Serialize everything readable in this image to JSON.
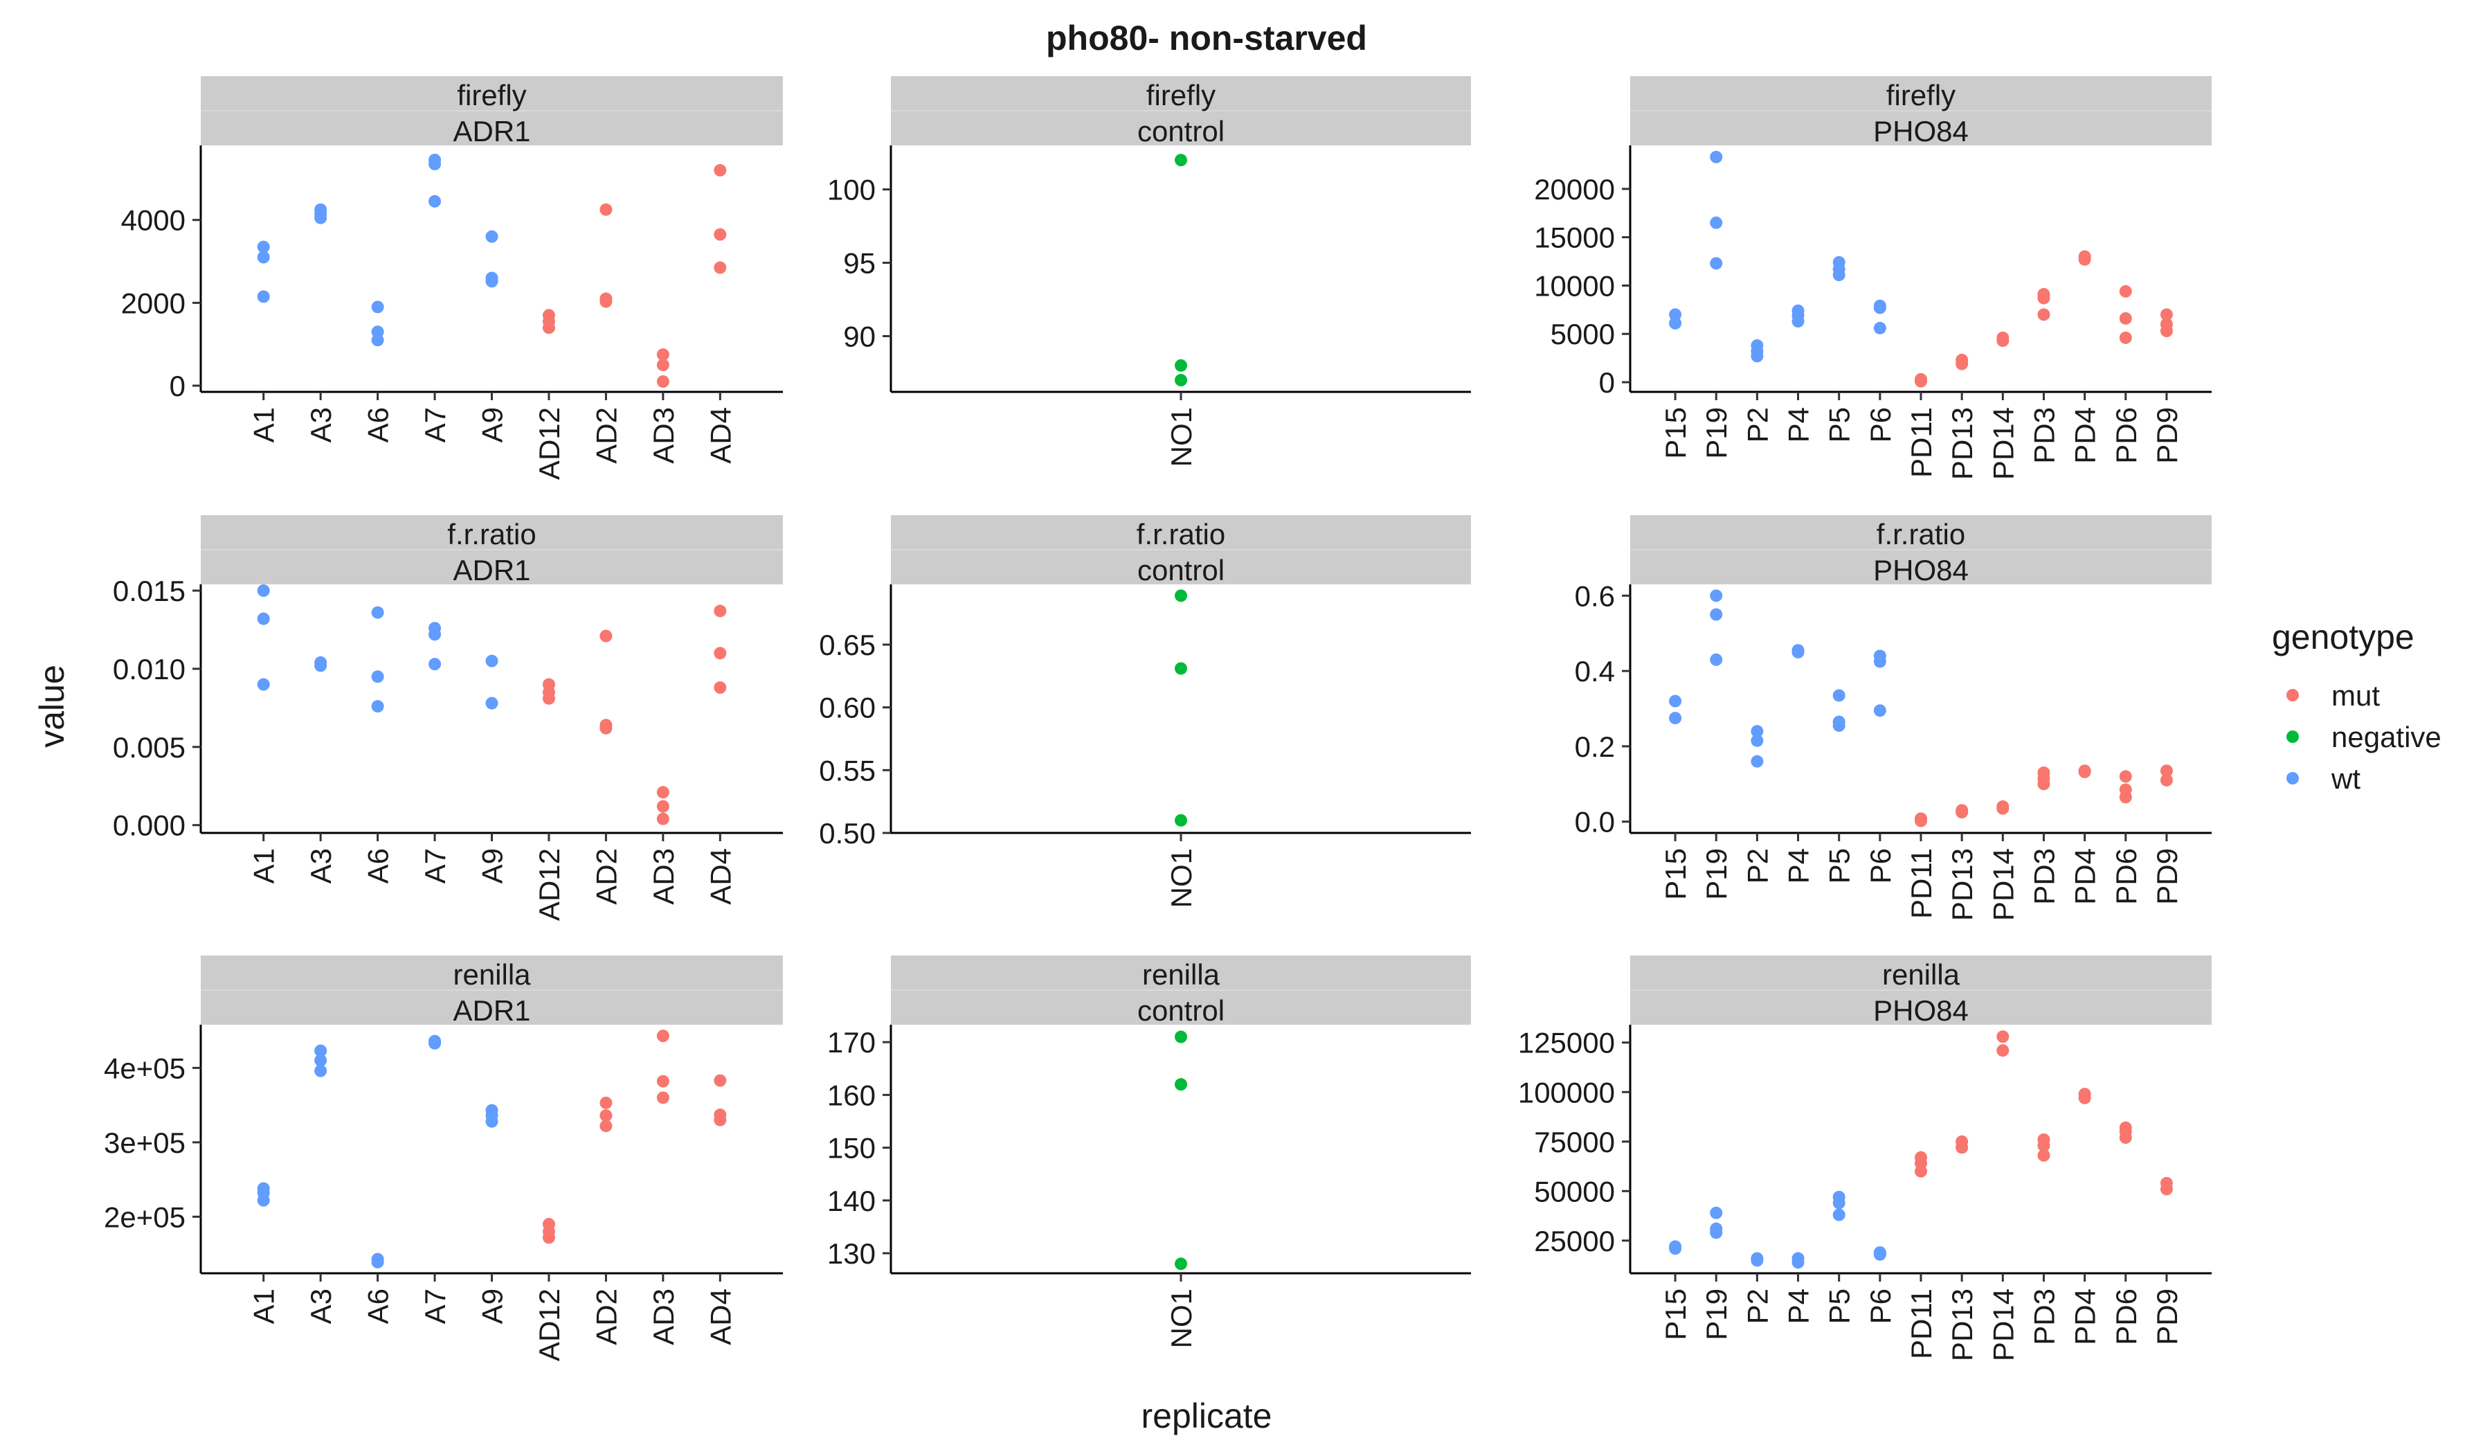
{
  "title": "pho80- non-starved",
  "xlabel": "replicate",
  "ylabel": "value",
  "legend": {
    "title": "genotype",
    "items": [
      {
        "label": "mut",
        "color": "#F8766D"
      },
      {
        "label": "negative",
        "color": "#00BA38"
      },
      {
        "label": "wt",
        "color": "#619CFF"
      }
    ]
  },
  "chart_data": [
    {
      "type": "scatter",
      "strip_top": "firefly",
      "strip_bottom": "ADR1",
      "categories": [
        "A1",
        "A3",
        "A6",
        "A7",
        "A9",
        "AD12",
        "AD2",
        "AD3",
        "AD4"
      ],
      "ylim": [
        -150,
        5800
      ],
      "yticks": [
        0,
        2000,
        4000
      ],
      "yticklabels": [
        "0",
        "2000",
        "4000"
      ],
      "series": [
        {
          "name": "wt",
          "points": [
            [
              "A1",
              3350
            ],
            [
              "A1",
              3100
            ],
            [
              "A1",
              2150
            ],
            [
              "A3",
              4250
            ],
            [
              "A3",
              4150
            ],
            [
              "A3",
              4050
            ],
            [
              "A6",
              1900
            ],
            [
              "A6",
              1300
            ],
            [
              "A6",
              1100
            ],
            [
              "A7",
              5450
            ],
            [
              "A7",
              5350
            ],
            [
              "A7",
              4450
            ],
            [
              "A9",
              3600
            ],
            [
              "A9",
              2600
            ],
            [
              "A9",
              2520
            ]
          ]
        },
        {
          "name": "mut",
          "points": [
            [
              "AD12",
              1700
            ],
            [
              "AD12",
              1550
            ],
            [
              "AD12",
              1400
            ],
            [
              "AD2",
              4250
            ],
            [
              "AD2",
              2100
            ],
            [
              "AD2",
              2030
            ],
            [
              "AD3",
              750
            ],
            [
              "AD3",
              500
            ],
            [
              "AD3",
              100
            ],
            [
              "AD4",
              5200
            ],
            [
              "AD4",
              3650
            ],
            [
              "AD4",
              2850
            ]
          ]
        }
      ]
    },
    {
      "type": "scatter",
      "strip_top": "firefly",
      "strip_bottom": "control",
      "categories": [
        "NO1"
      ],
      "ylim": [
        86.2,
        103
      ],
      "yticks": [
        90,
        95,
        100
      ],
      "yticklabels": [
        "90",
        "95",
        "100"
      ],
      "series": [
        {
          "name": "negative",
          "points": [
            [
              "NO1",
              102
            ],
            [
              "NO1",
              88
            ],
            [
              "NO1",
              87
            ]
          ]
        }
      ]
    },
    {
      "type": "scatter",
      "strip_top": "firefly",
      "strip_bottom": "PHO84",
      "categories": [
        "P15",
        "P19",
        "P2",
        "P4",
        "P5",
        "P6",
        "PD11",
        "PD13",
        "PD14",
        "PD3",
        "PD4",
        "PD6",
        "PD9"
      ],
      "ylim": [
        -1000,
        24500
      ],
      "yticks": [
        0,
        5000,
        10000,
        15000,
        20000
      ],
      "yticklabels": [
        "0",
        "5000",
        "10000",
        "15000",
        "20000"
      ],
      "series": [
        {
          "name": "wt",
          "points": [
            [
              "P15",
              7000
            ],
            [
              "P15",
              6100
            ],
            [
              "P19",
              23300
            ],
            [
              "P19",
              16500
            ],
            [
              "P19",
              12300
            ],
            [
              "P2",
              3800
            ],
            [
              "P2",
              3200
            ],
            [
              "P2",
              2700
            ],
            [
              "P4",
              7400
            ],
            [
              "P4",
              6900
            ],
            [
              "P4",
              6300
            ],
            [
              "P5",
              12400
            ],
            [
              "P5",
              11700
            ],
            [
              "P5",
              11100
            ],
            [
              "P6",
              7900
            ],
            [
              "P6",
              7700
            ],
            [
              "P6",
              5600
            ]
          ]
        },
        {
          "name": "mut",
          "points": [
            [
              "PD11",
              300
            ],
            [
              "PD11",
              100
            ],
            [
              "PD13",
              2300
            ],
            [
              "PD13",
              1900
            ],
            [
              "PD14",
              4600
            ],
            [
              "PD14",
              4300
            ],
            [
              "PD3",
              9100
            ],
            [
              "PD3",
              8700
            ],
            [
              "PD3",
              7000
            ],
            [
              "PD4",
              13000
            ],
            [
              "PD4",
              12700
            ],
            [
              "PD6",
              9400
            ],
            [
              "PD6",
              6600
            ],
            [
              "PD6",
              4600
            ],
            [
              "PD9",
              7000
            ],
            [
              "PD9",
              6000
            ],
            [
              "PD9",
              5300
            ]
          ]
        }
      ]
    },
    {
      "type": "scatter",
      "strip_top": "f.r.ratio",
      "strip_bottom": "ADR1",
      "categories": [
        "A1",
        "A3",
        "A6",
        "A7",
        "A9",
        "AD12",
        "AD2",
        "AD3",
        "AD4"
      ],
      "ylim": [
        -0.0005,
        0.0154
      ],
      "yticks": [
        0,
        0.005,
        0.01,
        0.015
      ],
      "yticklabels": [
        "0.000",
        "0.005",
        "0.010",
        "0.015"
      ],
      "series": [
        {
          "name": "wt",
          "points": [
            [
              "A1",
              0.015
            ],
            [
              "A1",
              0.0132
            ],
            [
              "A1",
              0.009
            ],
            [
              "A3",
              0.0104
            ],
            [
              "A3",
              0.0102
            ],
            [
              "A6",
              0.0136
            ],
            [
              "A6",
              0.0095
            ],
            [
              "A6",
              0.0076
            ],
            [
              "A7",
              0.0126
            ],
            [
              "A7",
              0.0122
            ],
            [
              "A7",
              0.0103
            ],
            [
              "A9",
              0.0105
            ],
            [
              "A9",
              0.0078
            ]
          ]
        },
        {
          "name": "mut",
          "points": [
            [
              "AD12",
              0.009
            ],
            [
              "AD12",
              0.0085
            ],
            [
              "AD12",
              0.0081
            ],
            [
              "AD2",
              0.0121
            ],
            [
              "AD2",
              0.0064
            ],
            [
              "AD2",
              0.0062
            ],
            [
              "AD3",
              0.0021
            ],
            [
              "AD3",
              0.0012
            ],
            [
              "AD3",
              0.0004
            ],
            [
              "AD4",
              0.0137
            ],
            [
              "AD4",
              0.011
            ],
            [
              "AD4",
              0.0088
            ]
          ]
        }
      ]
    },
    {
      "type": "scatter",
      "strip_top": "f.r.ratio",
      "strip_bottom": "control",
      "categories": [
        "NO1"
      ],
      "ylim": [
        0.5,
        0.698
      ],
      "yticks": [
        0.5,
        0.55,
        0.6,
        0.65
      ],
      "yticklabels": [
        "0.50",
        "0.55",
        "0.60",
        "0.65"
      ],
      "series": [
        {
          "name": "negative",
          "points": [
            [
              "NO1",
              0.689
            ],
            [
              "NO1",
              0.631
            ],
            [
              "NO1",
              0.51
            ]
          ]
        }
      ]
    },
    {
      "type": "scatter",
      "strip_top": "f.r.ratio",
      "strip_bottom": "PHO84",
      "categories": [
        "P15",
        "P19",
        "P2",
        "P4",
        "P5",
        "P6",
        "PD11",
        "PD13",
        "PD14",
        "PD3",
        "PD4",
        "PD6",
        "PD9"
      ],
      "ylim": [
        -0.03,
        0.63
      ],
      "yticks": [
        0,
        0.2,
        0.4,
        0.6
      ],
      "yticklabels": [
        "0.0",
        "0.2",
        "0.4",
        "0.6"
      ],
      "series": [
        {
          "name": "wt",
          "points": [
            [
              "P15",
              0.32
            ],
            [
              "P15",
              0.275
            ],
            [
              "P19",
              0.6
            ],
            [
              "P19",
              0.55
            ],
            [
              "P19",
              0.43
            ],
            [
              "P2",
              0.24
            ],
            [
              "P2",
              0.215
            ],
            [
              "P2",
              0.16
            ],
            [
              "P4",
              0.455
            ],
            [
              "P4",
              0.45
            ],
            [
              "P5",
              0.335
            ],
            [
              "P5",
              0.265
            ],
            [
              "P5",
              0.255
            ],
            [
              "P6",
              0.44
            ],
            [
              "P6",
              0.425
            ],
            [
              "P6",
              0.295
            ]
          ]
        },
        {
          "name": "mut",
          "points": [
            [
              "PD11",
              0.008
            ],
            [
              "PD11",
              0.002
            ],
            [
              "PD13",
              0.03
            ],
            [
              "PD13",
              0.025
            ],
            [
              "PD14",
              0.04
            ],
            [
              "PD14",
              0.035
            ],
            [
              "PD3",
              0.13
            ],
            [
              "PD3",
              0.115
            ],
            [
              "PD3",
              0.1
            ],
            [
              "PD4",
              0.135
            ],
            [
              "PD4",
              0.132
            ],
            [
              "PD6",
              0.12
            ],
            [
              "PD6",
              0.085
            ],
            [
              "PD6",
              0.065
            ],
            [
              "PD9",
              0.135
            ],
            [
              "PD9",
              0.11
            ]
          ]
        }
      ]
    },
    {
      "type": "scatter",
      "strip_top": "renilla",
      "strip_bottom": "ADR1",
      "categories": [
        "A1",
        "A3",
        "A6",
        "A7",
        "A9",
        "AD12",
        "AD2",
        "AD3",
        "AD4"
      ],
      "ylim": [
        124000,
        458000
      ],
      "yticks": [
        200000,
        300000,
        400000
      ],
      "yticklabels": [
        "2e+05",
        "3e+05",
        "4e+05"
      ],
      "series": [
        {
          "name": "wt",
          "points": [
            [
              "A1",
              238000
            ],
            [
              "A1",
              232000
            ],
            [
              "A1",
              222000
            ],
            [
              "A3",
              423000
            ],
            [
              "A3",
              410000
            ],
            [
              "A3",
              396000
            ],
            [
              "A6",
              143000
            ],
            [
              "A6",
              139000
            ],
            [
              "A7",
              436000
            ],
            [
              "A7",
              433000
            ],
            [
              "A9",
              343000
            ],
            [
              "A9",
              336000
            ],
            [
              "A9",
              328000
            ]
          ]
        },
        {
          "name": "mut",
          "points": [
            [
              "AD12",
              190000
            ],
            [
              "AD12",
              180000
            ],
            [
              "AD12",
              172000
            ],
            [
              "AD2",
              353000
            ],
            [
              "AD2",
              336000
            ],
            [
              "AD2",
              322000
            ],
            [
              "AD3",
              443000
            ],
            [
              "AD3",
              382000
            ],
            [
              "AD3",
              360000
            ],
            [
              "AD4",
              383000
            ],
            [
              "AD4",
              337000
            ],
            [
              "AD4",
              330000
            ]
          ]
        }
      ]
    },
    {
      "type": "scatter",
      "strip_top": "renilla",
      "strip_bottom": "control",
      "categories": [
        "NO1"
      ],
      "ylim": [
        126.2,
        173.3
      ],
      "yticks": [
        130,
        140,
        150,
        160,
        170
      ],
      "yticklabels": [
        "130",
        "140",
        "150",
        "160",
        "170"
      ],
      "series": [
        {
          "name": "negative",
          "points": [
            [
              "NO1",
              171
            ],
            [
              "NO1",
              162
            ],
            [
              "NO1",
              128
            ]
          ]
        }
      ]
    },
    {
      "type": "scatter",
      "strip_top": "renilla",
      "strip_bottom": "PHO84",
      "categories": [
        "P15",
        "P19",
        "P2",
        "P4",
        "P5",
        "P6",
        "PD11",
        "PD13",
        "PD14",
        "PD3",
        "PD4",
        "PD6",
        "PD9"
      ],
      "ylim": [
        8500,
        134000
      ],
      "yticks": [
        25000,
        50000,
        75000,
        100000,
        125000
      ],
      "yticklabels": [
        "25000",
        "50000",
        "75000",
        "100000",
        "125000"
      ],
      "series": [
        {
          "name": "wt",
          "points": [
            [
              "P15",
              22000
            ],
            [
              "P15",
              21000
            ],
            [
              "P19",
              39000
            ],
            [
              "P19",
              31000
            ],
            [
              "P19",
              29000
            ],
            [
              "P2",
              16000
            ],
            [
              "P2",
              15000
            ],
            [
              "P4",
              16000
            ],
            [
              "P4",
              14000
            ],
            [
              "P5",
              47000
            ],
            [
              "P5",
              44000
            ],
            [
              "P5",
              38000
            ],
            [
              "P6",
              19000
            ],
            [
              "P6",
              18000
            ]
          ]
        },
        {
          "name": "mut",
          "points": [
            [
              "PD11",
              67000
            ],
            [
              "PD11",
              64000
            ],
            [
              "PD11",
              60000
            ],
            [
              "PD13",
              75000
            ],
            [
              "PD13",
              72000
            ],
            [
              "PD14",
              128000
            ],
            [
              "PD14",
              121000
            ],
            [
              "PD3",
              76000
            ],
            [
              "PD3",
              73000
            ],
            [
              "PD3",
              68000
            ],
            [
              "PD4",
              99000
            ],
            [
              "PD4",
              97000
            ],
            [
              "PD6",
              82000
            ],
            [
              "PD6",
              80000
            ],
            [
              "PD6",
              77000
            ],
            [
              "PD9",
              54000
            ],
            [
              "PD9",
              51000
            ]
          ]
        }
      ]
    }
  ]
}
